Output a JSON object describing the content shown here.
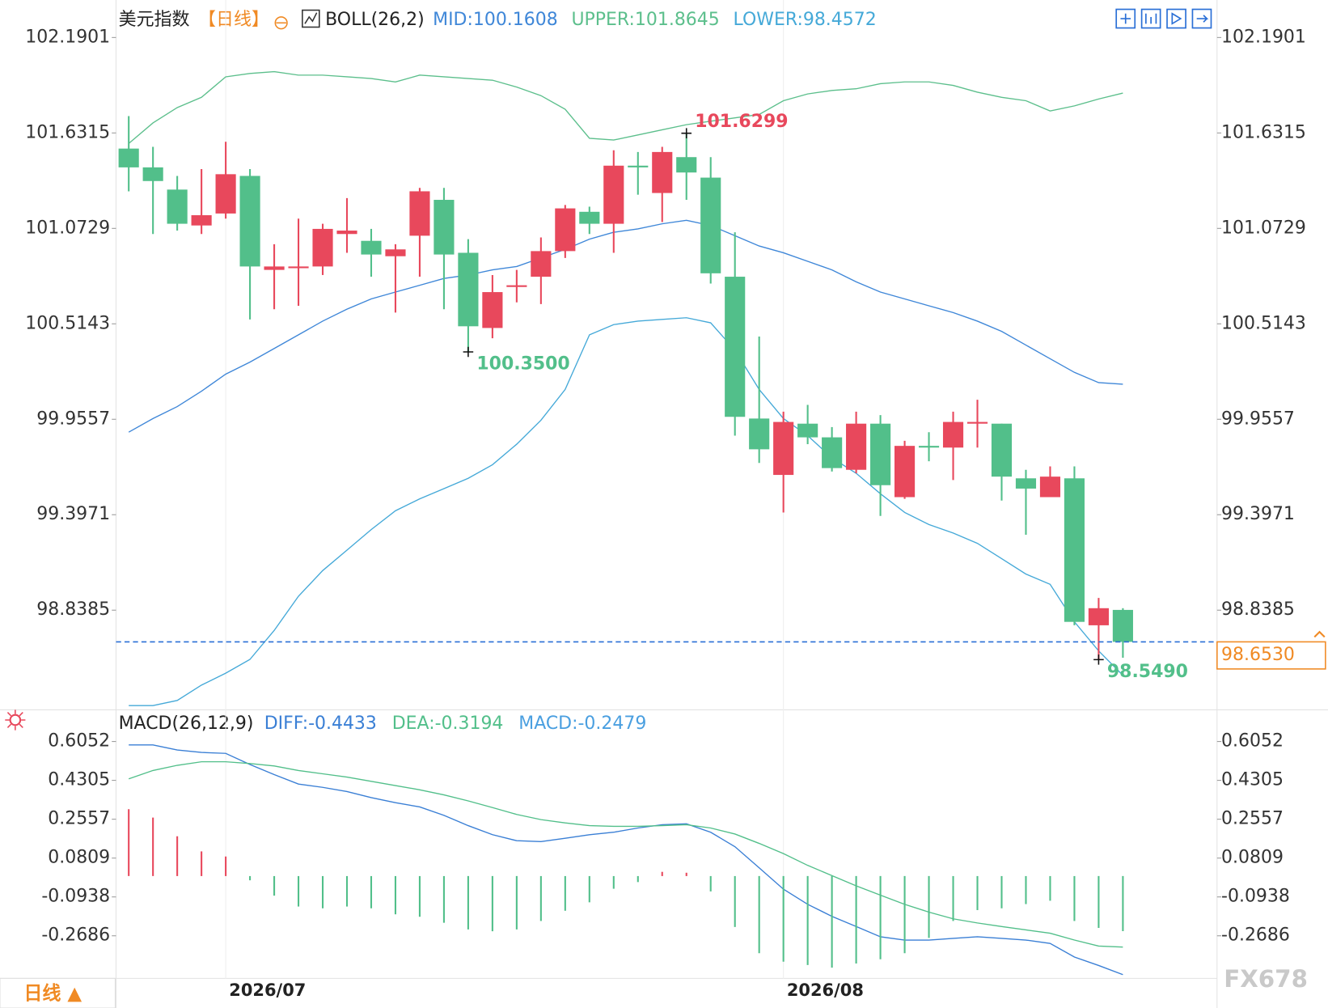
{
  "chart_data": [
    {
      "type": "candlestick",
      "title": "美元指数",
      "period": "【日线】",
      "categories": [
        null,
        null,
        null,
        null,
        "2026/07",
        null,
        null,
        null,
        null,
        null,
        null,
        null,
        null,
        null,
        null,
        null,
        null,
        null,
        null,
        null,
        null,
        null,
        null,
        null,
        null,
        null,
        null,
        "2026/08",
        null,
        null,
        null,
        null,
        null,
        null,
        null,
        null,
        null,
        null,
        null,
        null,
        null,
        null
      ],
      "open": [
        101.54,
        101.43,
        101.3,
        101.09,
        101.16,
        101.38,
        100.83,
        100.84,
        100.85,
        101.04,
        101.0,
        100.91,
        101.03,
        101.24,
        100.93,
        100.49,
        100.73,
        100.79,
        100.94,
        101.17,
        101.1,
        101.44,
        101.28,
        101.49,
        101.37,
        100.79,
        99.96,
        99.63,
        99.93,
        99.85,
        99.66,
        99.93,
        99.5,
        99.8,
        99.79,
        99.93,
        99.93,
        99.61,
        99.5,
        99.61,
        98.75,
        98.84
      ],
      "high": [
        101.73,
        101.55,
        101.38,
        101.42,
        101.58,
        101.42,
        100.98,
        101.13,
        101.1,
        101.25,
        101.07,
        100.98,
        101.31,
        101.31,
        101.01,
        100.8,
        100.83,
        101.02,
        101.21,
        101.2,
        101.53,
        101.52,
        101.55,
        101.6299,
        101.49,
        101.05,
        100.44,
        100.0,
        100.04,
        99.91,
        100.0,
        99.98,
        99.83,
        99.88,
        100.0,
        100.07,
        99.93,
        99.66,
        99.68,
        99.68,
        98.91,
        98.85
      ],
      "low": [
        101.29,
        101.04,
        101.06,
        101.04,
        101.13,
        100.54,
        100.6,
        100.62,
        100.8,
        100.93,
        100.79,
        100.58,
        100.79,
        100.6,
        100.35,
        100.43,
        100.64,
        100.63,
        100.9,
        101.04,
        100.93,
        101.27,
        101.11,
        101.24,
        100.75,
        99.86,
        99.7,
        99.41,
        99.81,
        99.65,
        99.64,
        99.39,
        99.49,
        99.71,
        99.6,
        99.79,
        99.48,
        99.28,
        99.5,
        98.75,
        98.549,
        98.56
      ],
      "close": [
        101.43,
        101.35,
        101.1,
        101.15,
        101.39,
        100.85,
        100.85,
        100.85,
        101.07,
        101.06,
        100.92,
        100.95,
        101.29,
        100.92,
        100.5,
        100.7,
        100.74,
        100.94,
        101.19,
        101.1,
        101.44,
        101.43,
        101.52,
        101.4,
        100.81,
        99.97,
        99.78,
        99.94,
        99.85,
        99.67,
        99.93,
        99.57,
        99.8,
        99.79,
        99.94,
        99.94,
        99.62,
        99.55,
        99.62,
        98.77,
        98.85,
        98.653
      ],
      "up_color": "#e8485c",
      "down_color": "#52bf8a",
      "ylim": [
        98.27,
        102.36
      ],
      "yticks": [
        102.1901,
        101.6315,
        101.0729,
        100.5143,
        99.9557,
        99.3971,
        98.8385
      ],
      "overlays": {
        "name": "BOLL(26,2)",
        "series": [
          {
            "name": "MID:100.1608",
            "color": "#3f87d8",
            "values": [
              99.88,
              99.96,
              100.03,
              100.12,
              100.22,
              100.29,
              100.37,
              100.45,
              100.53,
              100.6,
              100.66,
              100.7,
              100.74,
              100.78,
              100.8,
              100.83,
              100.85,
              100.9,
              100.95,
              101.01,
              101.05,
              101.07,
              101.1,
              101.12,
              101.09,
              101.03,
              100.97,
              100.93,
              100.88,
              100.83,
              100.76,
              100.7,
              100.66,
              100.62,
              100.58,
              100.53,
              100.47,
              100.39,
              100.31,
              100.23,
              100.17,
              100.1608
            ]
          },
          {
            "name": "UPPER:101.8645",
            "color": "#5cbf8c",
            "values": [
              101.57,
              101.69,
              101.78,
              101.84,
              101.96,
              101.98,
              101.99,
              101.97,
              101.97,
              101.96,
              101.95,
              101.93,
              101.97,
              101.96,
              101.95,
              101.94,
              101.9,
              101.85,
              101.77,
              101.6,
              101.59,
              101.62,
              101.65,
              101.68,
              101.7,
              101.72,
              101.74,
              101.82,
              101.86,
              101.88,
              101.89,
              101.92,
              101.93,
              101.93,
              101.91,
              101.87,
              101.84,
              101.82,
              101.76,
              101.79,
              101.83,
              101.8645
            ]
          },
          {
            "name": "LOWER:98.4572",
            "color": "#45a9d8",
            "values": [
              98.28,
              98.28,
              98.31,
              98.4,
              98.47,
              98.55,
              98.72,
              98.92,
              99.07,
              99.19,
              99.31,
              99.42,
              99.49,
              99.55,
              99.61,
              99.69,
              99.81,
              99.95,
              100.13,
              100.45,
              100.51,
              100.53,
              100.54,
              100.55,
              100.52,
              100.36,
              100.13,
              99.96,
              99.86,
              99.73,
              99.64,
              99.52,
              99.41,
              99.34,
              99.29,
              99.23,
              99.14,
              99.05,
              98.99,
              98.77,
              98.6,
              98.4572
            ]
          }
        ]
      },
      "annotations": [
        {
          "value": 101.6299,
          "label": "101.6299",
          "color": "#e8485c"
        },
        {
          "value": 100.35,
          "label": "100.3500",
          "color": "#52bf8a"
        },
        {
          "value": 98.549,
          "label": "98.5490",
          "color": "#52bf8a"
        }
      ],
      "last_price": {
        "value": 98.653,
        "label": "98.6530",
        "color": "#f08a24"
      }
    },
    {
      "type": "macd",
      "title": "MACD(26,12,9)",
      "ylim": [
        -0.46,
        0.74
      ],
      "yticks": [
        0.6052,
        0.4305,
        0.2557,
        0.0809,
        -0.0938,
        -0.2686
      ],
      "up_color": "#e8485c",
      "down_color": "#52bf8a",
      "series": [
        {
          "name": "DIFF:-0.4433",
          "color": "#3a7fd5",
          "values": [
            0.59,
            0.59,
            0.567,
            0.556,
            0.552,
            0.502,
            0.456,
            0.414,
            0.399,
            0.38,
            0.353,
            0.33,
            0.311,
            0.273,
            0.227,
            0.186,
            0.159,
            0.155,
            0.17,
            0.186,
            0.197,
            0.216,
            0.231,
            0.235,
            0.197,
            0.132,
            0.037,
            -0.059,
            -0.127,
            -0.181,
            -0.227,
            -0.273,
            -0.288,
            -0.288,
            -0.28,
            -0.273,
            -0.28,
            -0.288,
            -0.303,
            -0.364,
            -0.402,
            -0.4433
          ]
        },
        {
          "name": "DEA:-0.3194",
          "color": "#52bf8a",
          "values": [
            0.437,
            0.475,
            0.498,
            0.514,
            0.514,
            0.506,
            0.495,
            0.475,
            0.46,
            0.445,
            0.426,
            0.407,
            0.388,
            0.365,
            0.338,
            0.308,
            0.277,
            0.254,
            0.239,
            0.227,
            0.224,
            0.224,
            0.227,
            0.231,
            0.216,
            0.189,
            0.147,
            0.101,
            0.048,
            0.002,
            -0.044,
            -0.086,
            -0.127,
            -0.162,
            -0.192,
            -0.211,
            -0.227,
            -0.242,
            -0.257,
            -0.288,
            -0.315,
            -0.3194
          ]
        },
        {
          "name": "MACD:-0.2479",
          "color": "#4a9fe0",
          "values": [
            0.301,
            0.263,
            0.179,
            0.111,
            0.088,
            -0.019,
            -0.088,
            -0.137,
            -0.145,
            -0.137,
            -0.145,
            -0.172,
            -0.183,
            -0.21,
            -0.24,
            -0.248,
            -0.24,
            -0.202,
            -0.156,
            -0.118,
            -0.057,
            -0.027,
            0.019,
            0.015,
            -0.069,
            -0.229,
            -0.347,
            -0.385,
            -0.4,
            -0.412,
            -0.393,
            -0.374,
            -0.347,
            -0.278,
            -0.202,
            -0.153,
            -0.145,
            -0.126,
            -0.111,
            -0.202,
            -0.233,
            -0.2479
          ]
        }
      ]
    }
  ],
  "footer": {
    "period_button": "日线 ▲",
    "watermark": "FX678"
  }
}
